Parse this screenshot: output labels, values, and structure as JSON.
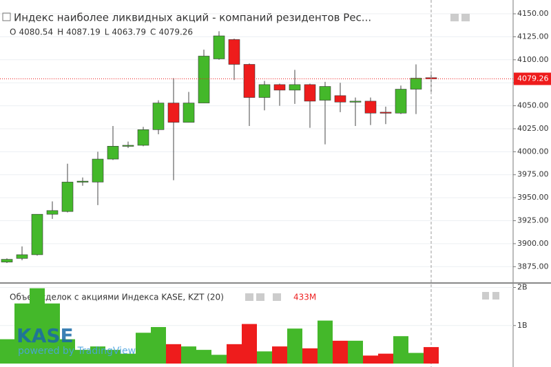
{
  "chart_data": [
    {
      "type": "candlestick",
      "title": "Индекс наиболее ликвидных акций - компаний резидентов Рес...",
      "ohlc_labels": [
        "O",
        "H",
        "L",
        "C"
      ],
      "categories": [
        null,
        null,
        null,
        null,
        null,
        null,
        null,
        null,
        null,
        null,
        null,
        null,
        null,
        null,
        null,
        null,
        null,
        null,
        null,
        null,
        null,
        null,
        null,
        null,
        null,
        null,
        null,
        null,
        null
      ],
      "open": [
        3880,
        3884,
        3888,
        3932,
        3935,
        3967,
        3967,
        3992,
        4006,
        4007,
        4024,
        4053,
        4032,
        4053,
        4101,
        4122,
        4095,
        4059,
        4073,
        4067,
        4073,
        4056,
        4061,
        4054,
        4055,
        4043,
        4042,
        4068,
        4080.54
      ],
      "high": [
        3884,
        3897,
        3932,
        3946,
        3987,
        3972,
        4000,
        4028,
        4011,
        4027,
        4056,
        4080,
        4065,
        4111,
        4131,
        4123,
        4096,
        4077,
        4074,
        4089,
        4074,
        4076,
        4075,
        4059,
        4059,
        4049,
        4072,
        4095,
        4087.19
      ],
      "low": [
        3879,
        3882,
        3887,
        3927,
        3934,
        3963,
        3942,
        3991,
        4004,
        4006,
        4019,
        3969,
        4032,
        4053,
        4100,
        4078,
        4028,
        4045,
        4050,
        4052,
        4026,
        4008,
        4043,
        4028,
        4029,
        4030,
        4041,
        4041,
        4063.79
      ],
      "close": [
        3883,
        3888,
        3932,
        3936,
        3967,
        3968,
        3992,
        4006,
        4007,
        4024,
        4053,
        4032,
        4053,
        4104,
        4126,
        4095,
        4059,
        4073,
        4067,
        4073,
        4055,
        4071,
        4054,
        4055,
        4042,
        4042,
        4068,
        4080,
        4079.26
      ],
      "up_color": "#44b82a",
      "down_color": "#ee1c1c",
      "ylim": [
        3858,
        4165
      ],
      "yticks": [
        {
          "value": 3875,
          "label": "3875.00"
        },
        {
          "value": 3900,
          "label": "3900.00"
        },
        {
          "value": 3925,
          "label": "3925.00"
        },
        {
          "value": 3950,
          "label": "3950.00"
        },
        {
          "value": 3975,
          "label": "3975.00"
        },
        {
          "value": 4000,
          "label": "4000.00"
        },
        {
          "value": 4025,
          "label": "4025.00"
        },
        {
          "value": 4050,
          "label": "4050.00"
        },
        {
          "value": 4075,
          "label": "4075.00"
        },
        {
          "value": 4100,
          "label": "4100.00"
        },
        {
          "value": 4125,
          "label": "4125.00"
        },
        {
          "value": 4150,
          "label": "4150.00"
        }
      ],
      "grid": true
    },
    {
      "type": "volume",
      "title": "Объем сделок с акциями Индекса KASE, KZT (20)",
      "values": [
        0.64,
        1.58,
        1.98,
        1.58,
        0.64,
        0.36,
        0.45,
        0.36,
        0.26,
        0.81,
        0.96,
        0.51,
        0.45,
        0.36,
        0.23,
        0.51,
        1.04,
        0.32,
        0.45,
        0.92,
        0.4,
        1.13,
        0.6,
        0.6,
        0.21,
        0.26,
        0.72,
        0.28,
        0.433
      ],
      "value_labels": [
        null,
        null,
        null,
        null,
        null,
        null,
        null,
        null,
        null,
        null,
        null,
        null,
        null,
        null,
        null,
        null,
        null,
        null,
        null,
        null,
        null,
        null,
        null,
        null,
        null,
        null,
        null,
        null,
        "433M"
      ],
      "ylim": [
        0,
        2.1
      ],
      "yticks": [
        {
          "value": 1,
          "label": "1B"
        },
        {
          "value": 2,
          "label": "2B"
        }
      ],
      "grid": true,
      "watermark": {
        "logo": "KASE",
        "tagline": "powered by TradingView"
      }
    }
  ]
}
